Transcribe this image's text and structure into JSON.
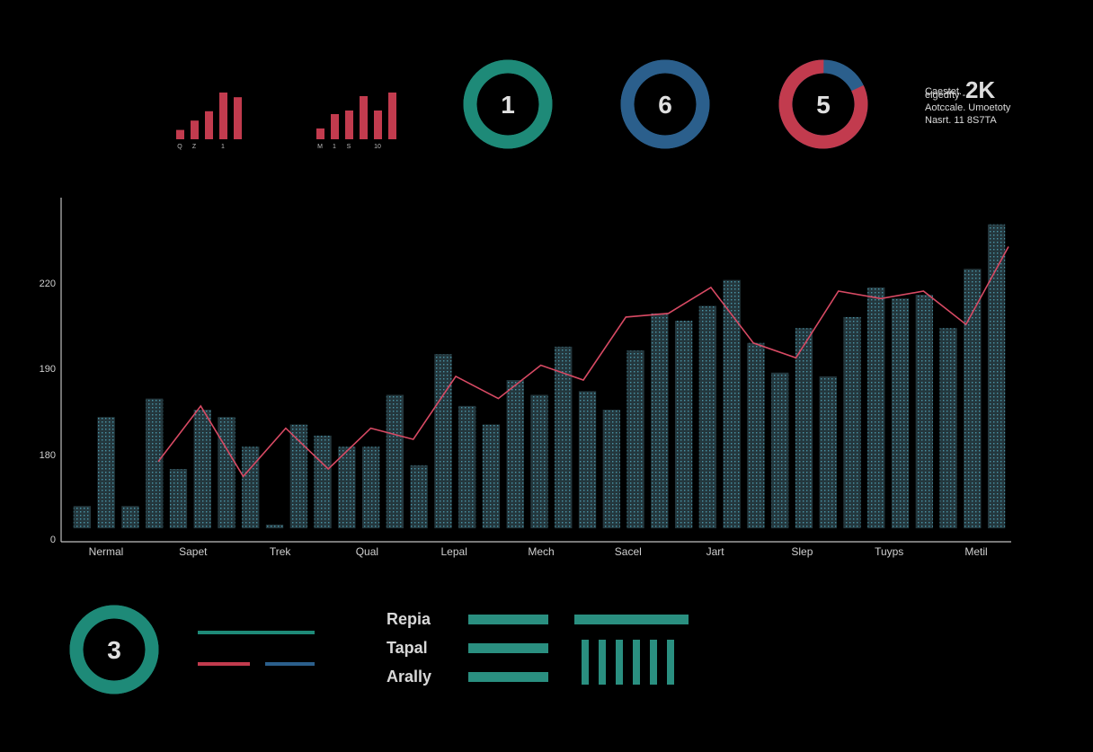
{
  "colors": {
    "background": "#000000",
    "red": "#c23b4e",
    "teal": "#1e8a78",
    "blue": "#2b5f8c",
    "bar": "#2f4a52",
    "barDot": "#3c8aa0",
    "line": "#d84a64",
    "axis": "#bfbfbf"
  },
  "mini_charts": [
    {
      "values": [
        2,
        4,
        6,
        10,
        9
      ],
      "tick_labels": [
        "Q",
        "Z",
        "",
        "1",
        ""
      ]
    },
    {
      "values": [
        3,
        7,
        8,
        12,
        8,
        13
      ],
      "tick_labels": [
        "M",
        "1",
        "S",
        "",
        "10",
        ""
      ]
    }
  ],
  "donuts": [
    {
      "label": "1",
      "ring_color": "#1e8a78",
      "fraction": 1.0,
      "secondary_color": "#1e8a78"
    },
    {
      "label": "6",
      "ring_color": "#2b5f8c",
      "fraction": 1.0,
      "secondary_color": "#2b5f8c"
    },
    {
      "label": "5",
      "ring_color": "#c23b4e",
      "fraction": 0.82,
      "secondary_color": "#2b5f8c"
    },
    {
      "label": "3",
      "ring_color": "#1e8a78",
      "fraction": 1.0,
      "secondary_color": "#1e8a78"
    }
  ],
  "stats": {
    "line1": "Caestet.",
    "big": "2K",
    "line2": "elgedfty -",
    "line3": "Aotccale. Umoetoty",
    "line4": "Nasrt. 11 8S7TA"
  },
  "chart_data": {
    "type": "bar",
    "y_ticks": [
      "0",
      "180",
      "190",
      "220"
    ],
    "x_ticks": [
      "Nermal",
      "Sapet",
      "Trek",
      "Qual",
      "Lepal",
      "Mech",
      "Sacel",
      "Jart",
      "Slep",
      "Tuyps",
      "Metil"
    ],
    "ylim": [
      0,
      4
    ],
    "grid": false,
    "bars": [
      0.3,
      1.5,
      0.3,
      1.75,
      0.8,
      1.6,
      1.5,
      1.1,
      0.05,
      1.4,
      1.25,
      1.1,
      1.1,
      1.8,
      0.85,
      2.35,
      1.65,
      1.4,
      2.0,
      1.8,
      2.45,
      1.85,
      1.6,
      2.4,
      2.9,
      2.8,
      3.0,
      3.35,
      2.5,
      2.1,
      2.7,
      2.05,
      2.85,
      3.25,
      3.1,
      3.15,
      2.7,
      3.5,
      4.1
    ],
    "line": [
      0.9,
      1.65,
      0.7,
      1.35,
      0.8,
      1.35,
      1.2,
      2.05,
      1.75,
      2.2,
      2.0,
      2.85,
      2.9,
      3.25,
      2.5,
      2.3,
      3.2,
      3.1,
      3.2,
      2.75,
      3.8
    ]
  },
  "legend": {
    "items": [
      "Repia",
      "Tapal",
      "Arally"
    ]
  }
}
